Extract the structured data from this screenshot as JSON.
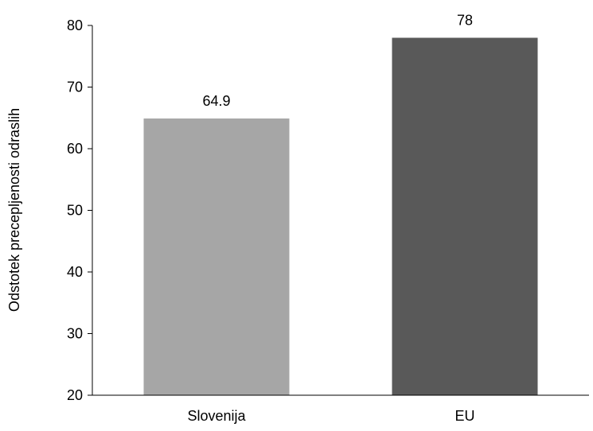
{
  "chart_data": {
    "type": "bar",
    "title": "",
    "xlabel": "",
    "ylabel": "Odstotek precepljenosti odraslih",
    "categories": [
      "Slovenija",
      "EU"
    ],
    "values": [
      64.9,
      78
    ],
    "value_labels": [
      "64.9",
      "78"
    ],
    "bar_colors": [
      "#a6a6a6",
      "#595959"
    ],
    "ylim": [
      20,
      80
    ],
    "yticks": [
      20,
      30,
      40,
      50,
      60,
      70,
      80
    ],
    "ytick_labels": [
      "20",
      "30",
      "40",
      "50",
      "60",
      "70",
      "80"
    ],
    "grid": false,
    "legend": "none"
  }
}
